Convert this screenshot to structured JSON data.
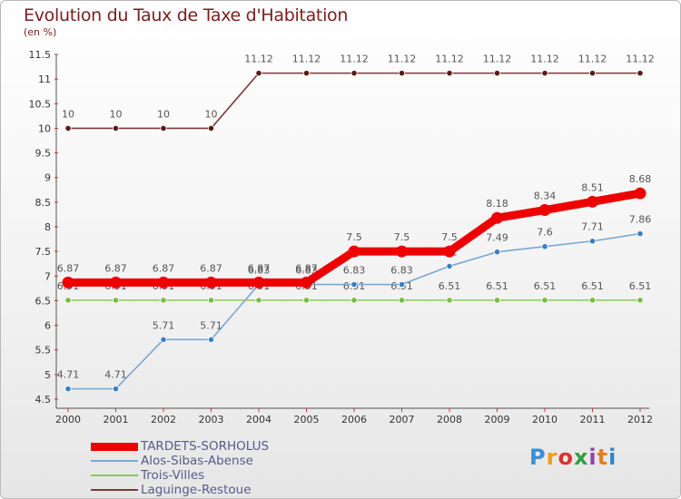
{
  "title": "Evolution du Taux de Taxe d'Habitation",
  "unit": "(en %)",
  "logo": {
    "text": "Proxiti",
    "letters": [
      {
        "ch": "P",
        "color": "#3a8fd6"
      },
      {
        "ch": "r",
        "color": "#f39c12"
      },
      {
        "ch": "o",
        "color": "#d9342b"
      },
      {
        "ch": "x",
        "color": "#2e9e3e"
      },
      {
        "ch": "i",
        "color": "#8e44ad"
      },
      {
        "ch": "t",
        "color": "#e67e22"
      },
      {
        "ch": "i",
        "color": "#2e86c1"
      }
    ]
  },
  "chart_data": {
    "type": "line",
    "title": "Evolution du Taux de Taxe d'Habitation",
    "ylabel": "(en %)",
    "xlabel": "",
    "x": [
      "2000",
      "2001",
      "2002",
      "2003",
      "2004",
      "2005",
      "2006",
      "2007",
      "2008",
      "2009",
      "2010",
      "2011",
      "2012"
    ],
    "ylim": [
      4.5,
      11.5
    ],
    "yticks": [
      4.5,
      5,
      5.5,
      6,
      6.5,
      7,
      7.5,
      8,
      8.5,
      9,
      9.5,
      10,
      10.5,
      11,
      11.5
    ],
    "grid": false,
    "legend": "bottom-left",
    "series": [
      {
        "name": "Laguinge-Restoue",
        "color": "#7a3a3a",
        "point": "#5a1a1a",
        "values": [
          10,
          10,
          10,
          10,
          11.12,
          11.12,
          11.12,
          11.12,
          11.12,
          11.12,
          11.12,
          11.12,
          11.12
        ],
        "labels": [
          "10",
          "10",
          "10",
          "10",
          "11.12",
          "11.12",
          "11.12",
          "11.12",
          "11.12",
          "11.12",
          "11.12",
          "11.12",
          "11.12"
        ]
      },
      {
        "name": "Trois-Villes",
        "color": "#88cc55",
        "point": "#77bb44",
        "values": [
          6.51,
          6.51,
          6.51,
          6.51,
          6.51,
          6.51,
          6.51,
          6.51,
          6.51,
          6.51,
          6.51,
          6.51,
          6.51
        ],
        "labels": [
          "6.51",
          "6.51",
          "6.51",
          "6.51",
          "6.51",
          "6.51",
          "6.51",
          "6.51",
          "6.51",
          "6.51",
          "6.51",
          "6.51",
          "6.51"
        ]
      },
      {
        "name": "Alos-Sibas-Abense",
        "color": "#7aa7d4",
        "point": "#3a7fc4",
        "values": [
          4.71,
          4.71,
          5.71,
          5.71,
          6.83,
          6.83,
          6.83,
          6.83,
          7.2,
          7.49,
          7.6,
          7.71,
          7.86
        ],
        "labels": [
          "4.71",
          "4.71",
          "5.71",
          "5.71",
          "6.83",
          "6.83",
          "6.83",
          "6.83",
          "7.2",
          "7.49",
          "7.6",
          "7.71",
          "7.86"
        ]
      },
      {
        "name": "TARDETS-SORHOLUS",
        "color": "#ee0000",
        "point": "#ee0000",
        "values": [
          6.87,
          6.87,
          6.87,
          6.87,
          6.87,
          6.87,
          7.5,
          7.5,
          7.5,
          8.18,
          8.34,
          8.51,
          8.68
        ],
        "labels": [
          "6.87",
          "6.87",
          "6.87",
          "6.87",
          "6.87",
          "6.87",
          "7.5",
          "7.5",
          "7.5",
          "8.18",
          "8.34",
          "8.51",
          "8.68"
        ]
      }
    ],
    "legend_order": [
      "TARDETS-SORHOLUS",
      "Alos-Sibas-Abense",
      "Trois-Villes",
      "Laguinge-Restoue"
    ]
  }
}
